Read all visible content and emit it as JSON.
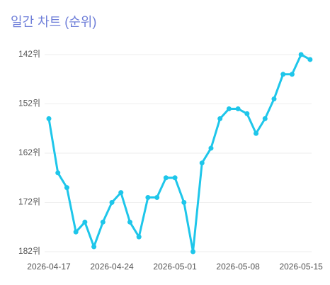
{
  "chart_data": {
    "type": "line",
    "title": "일간 차트 (순위)",
    "categories": [
      "2026-04-17",
      null,
      null,
      null,
      null,
      null,
      null,
      "2026-04-24",
      null,
      null,
      null,
      null,
      null,
      null,
      "2026-05-01",
      null,
      null,
      null,
      null,
      null,
      null,
      "2026-05-08",
      null,
      null,
      null,
      null,
      null,
      null,
      "2026-05-15",
      null
    ],
    "series": [
      {
        "name": "순위",
        "color": "#1ec6ea",
        "values": [
          155,
          166,
          169,
          178,
          176,
          181,
          176,
          172,
          170,
          176,
          179,
          171,
          171,
          167,
          167,
          172,
          182,
          164,
          161,
          155,
          153,
          153,
          154,
          158,
          155,
          151,
          146,
          146,
          142,
          143
        ]
      }
    ],
    "ylim": [
      182,
      142
    ],
    "yticks": [
      {
        "value": 142,
        "label": "142위"
      },
      {
        "value": 152,
        "label": "152위"
      },
      {
        "value": 162,
        "label": "162위"
      },
      {
        "value": 172,
        "label": "172위"
      },
      {
        "value": 182,
        "label": "182위"
      }
    ],
    "grid": true
  }
}
